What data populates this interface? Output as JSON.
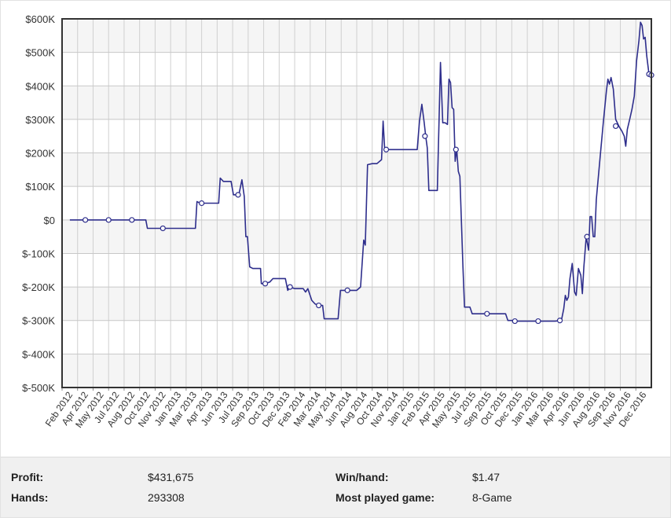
{
  "chart_data": {
    "type": "line",
    "title": "",
    "xlabel": "",
    "ylabel": "",
    "ylim": [
      -500000,
      600000
    ],
    "y_ticks": [
      "$-500K",
      "$-400K",
      "$-300K",
      "$-200K",
      "$-100K",
      "$0",
      "$100K",
      "$200K",
      "$300K",
      "$400K",
      "$500K",
      "$600K"
    ],
    "x_ticks": [
      "Feb 2012",
      "Apr 2012",
      "May 2012",
      "Jul 2012",
      "Aug 2012",
      "Oct 2012",
      "Nov 2012",
      "Jan 2013",
      "Mar 2013",
      "Apr 2013",
      "Jun 2013",
      "Jul 2013",
      "Sep 2013",
      "Oct 2013",
      "Dec 2013",
      "Feb 2014",
      "Mar 2014",
      "May 2014",
      "Jun 2014",
      "Aug 2014",
      "Oct 2014",
      "Nov 2014",
      "Jan 2015",
      "Feb 2015",
      "Apr 2015",
      "May 2015",
      "Jul 2015",
      "Sep 2015",
      "Oct 2015",
      "Dec 2015",
      "Jan 2016",
      "Mar 2016",
      "Apr 2016",
      "Jun 2016",
      "Aug 2016",
      "Sep 2016",
      "Nov 2016",
      "Dec 2016"
    ],
    "grid": true,
    "series": [
      {
        "color": "#2e2e8c",
        "values": [
          [
            0,
            0
          ],
          [
            0.3,
            0
          ],
          [
            1,
            0
          ],
          [
            1.5,
            0
          ],
          [
            2,
            0
          ],
          [
            2.5,
            0
          ],
          [
            3,
            0
          ],
          [
            3.5,
            0
          ],
          [
            4,
            0
          ],
          [
            4.5,
            0
          ],
          [
            4.9,
            0
          ],
          [
            5,
            -25000
          ],
          [
            5.5,
            -25000
          ],
          [
            6,
            -25000
          ],
          [
            6.5,
            -25000
          ],
          [
            7,
            -25000
          ],
          [
            7.3,
            -25000
          ],
          [
            7.5,
            -25000
          ],
          [
            7.8,
            -25000
          ],
          [
            8.1,
            -25000
          ],
          [
            8.2,
            55000
          ],
          [
            8.4,
            50000
          ],
          [
            8.6,
            50000
          ],
          [
            9,
            50000
          ],
          [
            9.4,
            50000
          ],
          [
            9.6,
            50000
          ],
          [
            9.7,
            125000
          ],
          [
            9.9,
            115000
          ],
          [
            10.2,
            115000
          ],
          [
            10.4,
            115000
          ],
          [
            10.55,
            75000
          ],
          [
            10.7,
            75000
          ],
          [
            10.9,
            75000
          ],
          [
            11.1,
            120000
          ],
          [
            11.25,
            70000
          ],
          [
            11.35,
            -50000
          ],
          [
            11.45,
            -50000
          ],
          [
            11.6,
            -140000
          ],
          [
            11.8,
            -145000
          ],
          [
            12,
            -145000
          ],
          [
            12.3,
            -145000
          ],
          [
            12.35,
            -190000
          ],
          [
            12.6,
            -190000
          ],
          [
            12.9,
            -185000
          ],
          [
            13.1,
            -175000
          ],
          [
            13.5,
            -175000
          ],
          [
            13.9,
            -175000
          ],
          [
            14.05,
            -210000
          ],
          [
            14.2,
            -200000
          ],
          [
            14.5,
            -205000
          ],
          [
            14.8,
            -205000
          ],
          [
            15.05,
            -205000
          ],
          [
            15.2,
            -215000
          ],
          [
            15.35,
            -205000
          ],
          [
            15.6,
            -240000
          ],
          [
            15.8,
            -250000
          ],
          [
            16,
            -255000
          ],
          [
            16.3,
            -255000
          ],
          [
            16.4,
            -295000
          ],
          [
            16.7,
            -295000
          ],
          [
            17,
            -295000
          ],
          [
            17.3,
            -295000
          ],
          [
            17.45,
            -210000
          ],
          [
            17.7,
            -210000
          ],
          [
            18,
            -210000
          ],
          [
            18.3,
            -210000
          ],
          [
            18.5,
            -210000
          ],
          [
            18.75,
            -200000
          ],
          [
            18.95,
            -60000
          ],
          [
            19.05,
            -75000
          ],
          [
            19.2,
            165000
          ],
          [
            19.5,
            168000
          ],
          [
            19.8,
            168000
          ],
          [
            20.1,
            180000
          ],
          [
            20.2,
            295000
          ],
          [
            20.3,
            215000
          ],
          [
            20.5,
            210000
          ],
          [
            20.8,
            210000
          ],
          [
            21.1,
            210000
          ],
          [
            21.4,
            210000
          ],
          [
            21.7,
            210000
          ],
          [
            22,
            210000
          ],
          [
            22.4,
            210000
          ],
          [
            22.55,
            295000
          ],
          [
            22.7,
            345000
          ],
          [
            22.85,
            290000
          ],
          [
            22.95,
            250000
          ],
          [
            23.05,
            215000
          ],
          [
            23.15,
            88000
          ],
          [
            23.5,
            88000
          ],
          [
            23.7,
            88000
          ],
          [
            23.9,
            470000
          ],
          [
            24.05,
            290000
          ],
          [
            24.2,
            290000
          ],
          [
            24.35,
            285000
          ],
          [
            24.45,
            420000
          ],
          [
            24.55,
            410000
          ],
          [
            24.65,
            335000
          ],
          [
            24.75,
            330000
          ],
          [
            24.85,
            175000
          ],
          [
            24.95,
            210000
          ],
          [
            25.05,
            145000
          ],
          [
            25.15,
            130000
          ],
          [
            25.35,
            -140000
          ],
          [
            25.45,
            -260000
          ],
          [
            25.8,
            -260000
          ],
          [
            25.95,
            -280000
          ],
          [
            26.3,
            -280000
          ],
          [
            26.7,
            -280000
          ],
          [
            27,
            -280000
          ],
          [
            27.3,
            -280000
          ],
          [
            27.6,
            -280000
          ],
          [
            27.9,
            -280000
          ],
          [
            28.1,
            -280000
          ],
          [
            28.25,
            -300000
          ],
          [
            28.5,
            -300000
          ],
          [
            28.9,
            -302000
          ],
          [
            29.3,
            -302000
          ],
          [
            29.8,
            -302000
          ],
          [
            30.3,
            -302000
          ],
          [
            30.8,
            -302000
          ],
          [
            31.3,
            -302000
          ],
          [
            31.7,
            -300000
          ],
          [
            31.85,
            -265000
          ],
          [
            31.95,
            -225000
          ],
          [
            32.05,
            -240000
          ],
          [
            32.15,
            -230000
          ],
          [
            32.25,
            -175000
          ],
          [
            32.4,
            -130000
          ],
          [
            32.55,
            -215000
          ],
          [
            32.65,
            -225000
          ],
          [
            32.8,
            -145000
          ],
          [
            32.95,
            -165000
          ],
          [
            33.05,
            -220000
          ],
          [
            33.15,
            -140000
          ],
          [
            33.3,
            -50000
          ],
          [
            33.45,
            -90000
          ],
          [
            33.55,
            10000
          ],
          [
            33.65,
            10000
          ],
          [
            33.75,
            -50000
          ],
          [
            33.85,
            -50000
          ],
          [
            33.95,
            60000
          ],
          [
            34.2,
            190000
          ],
          [
            34.4,
            290000
          ],
          [
            34.6,
            385000
          ],
          [
            34.7,
            420000
          ],
          [
            34.8,
            405000
          ],
          [
            34.9,
            425000
          ],
          [
            35.05,
            390000
          ],
          [
            35.2,
            300000
          ],
          [
            35.4,
            280000
          ],
          [
            35.6,
            265000
          ],
          [
            35.75,
            250000
          ],
          [
            35.85,
            220000
          ],
          [
            35.95,
            270000
          ],
          [
            36.1,
            300000
          ],
          [
            36.25,
            330000
          ],
          [
            36.4,
            370000
          ],
          [
            36.55,
            475000
          ],
          [
            36.7,
            535000
          ],
          [
            36.8,
            590000
          ],
          [
            36.9,
            580000
          ],
          [
            37,
            540000
          ],
          [
            37.1,
            545000
          ],
          [
            37.2,
            490000
          ],
          [
            37.35,
            435000
          ],
          [
            37.5,
            432000
          ]
        ],
        "markers": [
          [
            1,
            0
          ],
          [
            2.5,
            0
          ],
          [
            4,
            0
          ],
          [
            6,
            -25000
          ],
          [
            8.5,
            50000
          ],
          [
            10.85,
            75000
          ],
          [
            12.6,
            -190000
          ],
          [
            14.2,
            -200000
          ],
          [
            16.05,
            -255000
          ],
          [
            17.9,
            -210000
          ],
          [
            20.4,
            210000
          ],
          [
            22.9,
            250000
          ],
          [
            24.9,
            210000
          ],
          [
            26.9,
            -280000
          ],
          [
            28.7,
            -302000
          ],
          [
            30.2,
            -302000
          ],
          [
            31.6,
            -300000
          ],
          [
            33.35,
            -50000
          ],
          [
            35.2,
            280000
          ],
          [
            37.35,
            435000
          ],
          [
            37.5,
            432000
          ]
        ]
      }
    ]
  },
  "stats": {
    "profit_label": "Profit:",
    "profit_value": "$431,675",
    "hands_label": "Hands:",
    "hands_value": "293308",
    "winhand_label": "Win/hand:",
    "winhand_value": "$1.47",
    "game_label": "Most played game:",
    "game_value": "8-Game"
  }
}
